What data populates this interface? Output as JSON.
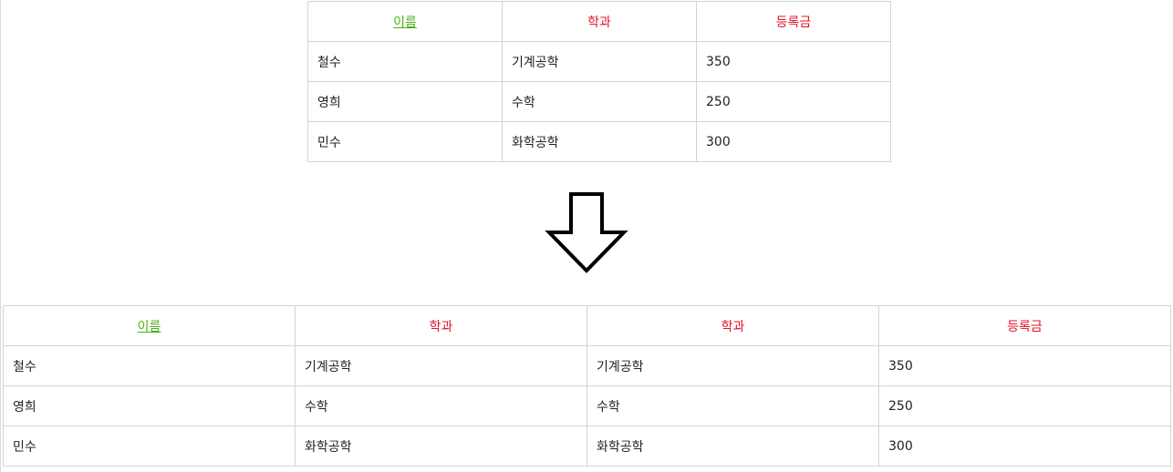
{
  "top_table": {
    "headers": [
      "이름",
      "학과",
      "등록금"
    ],
    "rows": [
      [
        "철수",
        "기계공학",
        "350"
      ],
      [
        "영희",
        "수학",
        "250"
      ],
      [
        "민수",
        "화학공학",
        "300"
      ]
    ]
  },
  "bottom_table": {
    "headers": [
      "이름",
      "학과",
      "학과",
      "등록금"
    ],
    "rows": [
      [
        "철수",
        "기계공학",
        "기계공학",
        "350"
      ],
      [
        "영희",
        "수학",
        "수학",
        "250"
      ],
      [
        "민수",
        "화학공학",
        "화학공학",
        "300"
      ]
    ]
  },
  "colors": {
    "link_header": "#4caf1e",
    "header_text": "#e0152a",
    "border": "#d4d4d4"
  },
  "arrow_icon": "down-arrow-icon"
}
